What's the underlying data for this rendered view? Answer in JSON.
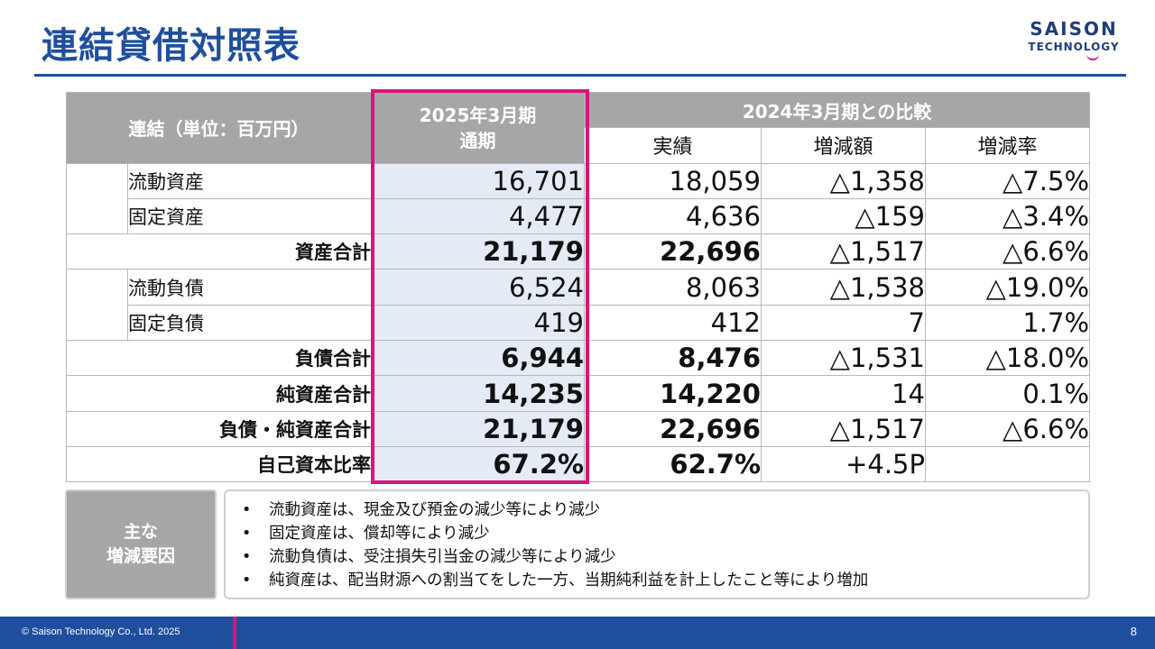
{
  "title": "連結貸借対照表",
  "logo": {
    "line1": "SAISON",
    "line2": "TECHNOLOGY"
  },
  "table": {
    "corner_header": "連結（単位：百万円）",
    "current_period_header": "2025年3月期\n通期",
    "comparison_header": "2024年3月期との比較",
    "sub_headers": [
      "実績",
      "増減額",
      "増減率"
    ],
    "rows": [
      {
        "label": "流動資産",
        "current": "16,701",
        "prior": "18,059",
        "diff": "△1,358",
        "rate": "△7.5%"
      },
      {
        "label": "固定資産",
        "current": "4,477",
        "prior": "4,636",
        "diff": "△159",
        "rate": "△3.4%"
      },
      {
        "label": "資産合計",
        "current": "21,179",
        "prior": "22,696",
        "diff": "△1,517",
        "rate": "△6.6%"
      },
      {
        "label": "流動負債",
        "current": "6,524",
        "prior": "8,063",
        "diff": "△1,538",
        "rate": "△19.0%"
      },
      {
        "label": "固定負債",
        "current": "419",
        "prior": "412",
        "diff": "7",
        "rate": "1.7%"
      },
      {
        "label": "負債合計",
        "current": "6,944",
        "prior": "8,476",
        "diff": "△1,531",
        "rate": "△18.0%"
      },
      {
        "label": "純資産合計",
        "current": "14,235",
        "prior": "14,220",
        "diff": "14",
        "rate": "0.1%"
      },
      {
        "label": "負債・純資産合計",
        "current": "21,179",
        "prior": "22,696",
        "diff": "△1,517",
        "rate": "△6.6%"
      },
      {
        "label": "自己資本比率",
        "current": "67.2%",
        "prior": "62.7%",
        "diff": "+4.5P",
        "rate": ""
      }
    ]
  },
  "factors": {
    "label_line1": "主な",
    "label_line2": "増減要因",
    "items": [
      "流動資産は、現金及び預金の減少等により減少",
      "固定資産は、償却等により減少",
      "流動負債は、受注損失引当金の減少等により減少",
      "純資産は、配当財源への割当てをした一方、当期純利益を計上したこと等により増加"
    ]
  },
  "footer": {
    "copyright": "© Saison Technology Co., Ltd. 2025",
    "page": "8"
  },
  "colors": {
    "brand_blue": "#1f4f9c",
    "highlight_pink": "#d8157a",
    "header_gray": "#a6a6a6",
    "current_col_bg": "#e4ebf5"
  }
}
